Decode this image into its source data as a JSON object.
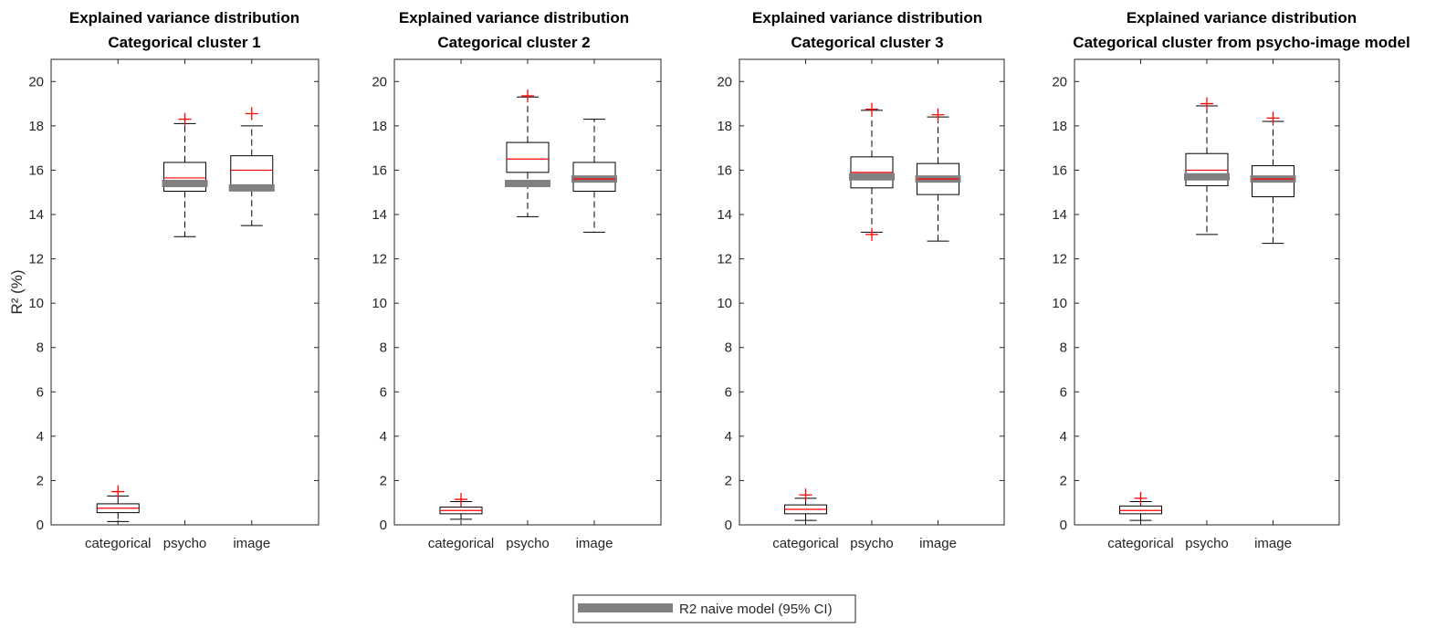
{
  "chart_data": [
    {
      "type": "box",
      "title": "Explained variance distribution",
      "subtitle": "Categorical cluster 1",
      "ylabel": "R² (%)",
      "ylim": [
        0,
        21
      ],
      "yticks": [
        0,
        2,
        4,
        6,
        8,
        10,
        12,
        14,
        16,
        18,
        20
      ],
      "categories": [
        "categorical",
        "psycho",
        "image"
      ],
      "boxes": [
        {
          "whisker_low": 0.15,
          "q1": 0.55,
          "median": 0.75,
          "q3": 0.95,
          "whisker_high": 1.3,
          "outliers": [
            1.5
          ]
        },
        {
          "whisker_low": 13.0,
          "q1": 15.05,
          "median": 15.65,
          "q3": 16.35,
          "whisker_high": 18.1,
          "outliers": [
            18.3
          ]
        },
        {
          "whisker_low": 13.5,
          "q1": 15.1,
          "median": 16.0,
          "q3": 16.65,
          "whisker_high": 18.0,
          "outliers": [
            18.55
          ]
        }
      ],
      "naive_model_ci": [
        null,
        15.4,
        15.2
      ]
    },
    {
      "type": "box",
      "title": "Explained variance distribution",
      "subtitle": "Categorical cluster 2",
      "ylabel": "",
      "ylim": [
        0,
        21
      ],
      "yticks": [
        0,
        2,
        4,
        6,
        8,
        10,
        12,
        14,
        16,
        18,
        20
      ],
      "categories": [
        "categorical",
        "psycho",
        "image"
      ],
      "boxes": [
        {
          "whisker_low": 0.25,
          "q1": 0.5,
          "median": 0.65,
          "q3": 0.8,
          "whisker_high": 1.05,
          "outliers": [
            1.15
          ]
        },
        {
          "whisker_low": 13.9,
          "q1": 15.9,
          "median": 16.5,
          "q3": 17.25,
          "whisker_high": 19.3,
          "outliers": [
            19.35
          ]
        },
        {
          "whisker_low": 13.2,
          "q1": 15.05,
          "median": 15.6,
          "q3": 16.35,
          "whisker_high": 18.3,
          "outliers": []
        }
      ],
      "naive_model_ci": [
        null,
        15.4,
        15.6
      ]
    },
    {
      "type": "box",
      "title": "Explained variance distribution",
      "subtitle": "Categorical cluster 3",
      "ylabel": "",
      "ylim": [
        0,
        21
      ],
      "yticks": [
        0,
        2,
        4,
        6,
        8,
        10,
        12,
        14,
        16,
        18,
        20
      ],
      "categories": [
        "categorical",
        "psycho",
        "image"
      ],
      "boxes": [
        {
          "whisker_low": 0.2,
          "q1": 0.5,
          "median": 0.7,
          "q3": 0.9,
          "whisker_high": 1.2,
          "outliers": [
            1.35
          ]
        },
        {
          "whisker_low": 13.2,
          "q1": 15.2,
          "median": 15.9,
          "q3": 16.6,
          "whisker_high": 18.7,
          "outliers": [
            18.75,
            13.1
          ]
        },
        {
          "whisker_low": 12.8,
          "q1": 14.9,
          "median": 15.6,
          "q3": 16.3,
          "whisker_high": 18.4,
          "outliers": [
            18.5
          ]
        }
      ],
      "naive_model_ci": [
        null,
        15.7,
        15.6
      ]
    },
    {
      "type": "box",
      "title": "Explained variance distribution",
      "subtitle": "Categorical cluster from psycho-image model",
      "ylabel": "",
      "ylim": [
        0,
        21
      ],
      "yticks": [
        0,
        2,
        4,
        6,
        8,
        10,
        12,
        14,
        16,
        18,
        20
      ],
      "categories": [
        "categorical",
        "psycho",
        "image"
      ],
      "boxes": [
        {
          "whisker_low": 0.2,
          "q1": 0.5,
          "median": 0.65,
          "q3": 0.85,
          "whisker_high": 1.05,
          "outliers": [
            1.2
          ]
        },
        {
          "whisker_low": 13.1,
          "q1": 15.3,
          "median": 16.0,
          "q3": 16.75,
          "whisker_high": 18.9,
          "outliers": [
            19.0
          ]
        },
        {
          "whisker_low": 12.7,
          "q1": 14.8,
          "median": 15.6,
          "q3": 16.2,
          "whisker_high": 18.2,
          "outliers": [
            18.35
          ]
        }
      ],
      "naive_model_ci": [
        null,
        15.7,
        15.6
      ]
    }
  ],
  "legend": {
    "label": "R2 naive model (95% CI)",
    "placement": "bottom-center"
  },
  "colors": {
    "median": "#ff0000",
    "outlier": "#ff0000",
    "box": "#000000",
    "naive_ci": "#808080",
    "axis": "#262626"
  }
}
